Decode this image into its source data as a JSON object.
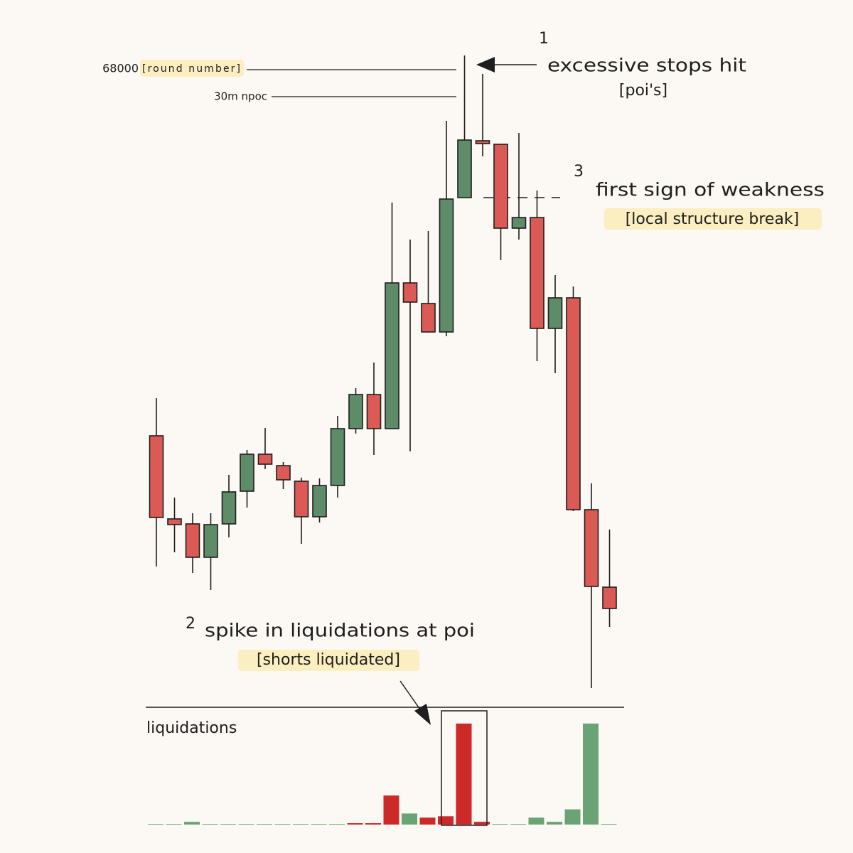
{
  "chart_data": {
    "type": "candlestick",
    "up_color": "#5e8b68",
    "down_color": "#dc5a55",
    "ylim": [
      0,
      1000
    ],
    "open": [
      387,
      270,
      263,
      216,
      263,
      309,
      361,
      345,
      323,
      273,
      317,
      397,
      445,
      397,
      602,
      573,
      533,
      722,
      802,
      797,
      679,
      694,
      538,
      581,
      283,
      174
    ],
    "close": [
      272,
      262,
      216,
      262,
      308,
      361,
      347,
      325,
      273,
      317,
      397,
      445,
      397,
      602,
      575,
      533,
      720,
      803,
      798,
      679,
      694,
      538,
      581,
      283,
      175,
      144
    ],
    "high": [
      440,
      300,
      278,
      278,
      332,
      367,
      398,
      350,
      328,
      327,
      415,
      454,
      490,
      715,
      663,
      675,
      830,
      922,
      896,
      797,
      813,
      732,
      613,
      597,
      320,
      255
    ],
    "low": [
      203,
      223,
      194,
      170,
      244,
      286,
      340,
      312,
      235,
      265,
      300,
      390,
      360,
      397,
      365,
      533,
      527,
      722,
      780,
      634,
      663,
      492,
      475,
      281,
      32,
      118
    ],
    "reference_lines": [
      {
        "value": "68000",
        "tag": "[round number]"
      },
      {
        "label": "30m npoc"
      }
    ],
    "annotations": [
      {
        "number": "1",
        "text": "excessive stops hit",
        "tag": "[poi's]"
      },
      {
        "number": "2",
        "text": "spike in liquidations at poi",
        "tag": "[shorts liquidated]"
      },
      {
        "number": "3",
        "text": "first sign of weakness",
        "tag": "[local structure break]"
      }
    ],
    "liquidations": {
      "type": "bar",
      "title": "liquidations",
      "ylim": [
        0,
        150
      ],
      "values": [
        1,
        1,
        4,
        1,
        1,
        1,
        1,
        1,
        1,
        1,
        1,
        2,
        2,
        42,
        16,
        10,
        12,
        146,
        4,
        1,
        1,
        10,
        4,
        22,
        146,
        1
      ],
      "colors": [
        "#6aa474",
        "#6aa474",
        "#6aa474",
        "#6aa474",
        "#6aa474",
        "#6aa474",
        "#6aa474",
        "#6aa474",
        "#6aa474",
        "#6aa474",
        "#6aa474",
        "#cc2929",
        "#cc2929",
        "#cc2929",
        "#6aa474",
        "#cc2929",
        "#cc2929",
        "#cc2929",
        "#cc2929",
        "#6aa474",
        "#6aa474",
        "#6aa474",
        "#6aa474",
        "#6aa474",
        "#6aa474",
        "#6aa474"
      ]
    }
  }
}
